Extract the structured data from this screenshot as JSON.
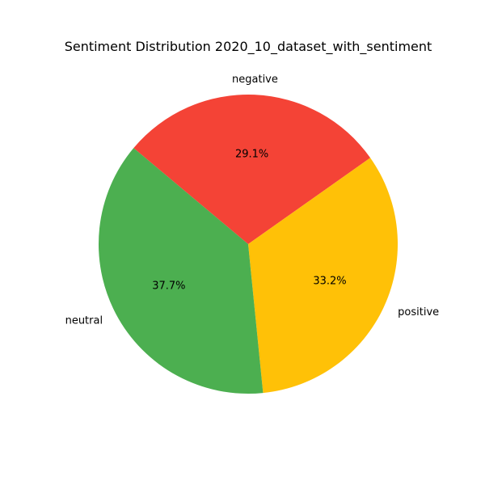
{
  "chart_data": {
    "type": "pie",
    "title": "Sentiment Distribution 2020_10_dataset_with_sentiment",
    "slices": [
      {
        "label": "negative",
        "value": 29.1,
        "pct_label": "29.1%",
        "color": "#f44336"
      },
      {
        "label": "positive",
        "value": 33.2,
        "pct_label": "33.2%",
        "color": "#ffc107"
      },
      {
        "label": "neutral",
        "value": 37.7,
        "pct_label": "37.7%",
        "color": "#4caf50"
      }
    ]
  }
}
